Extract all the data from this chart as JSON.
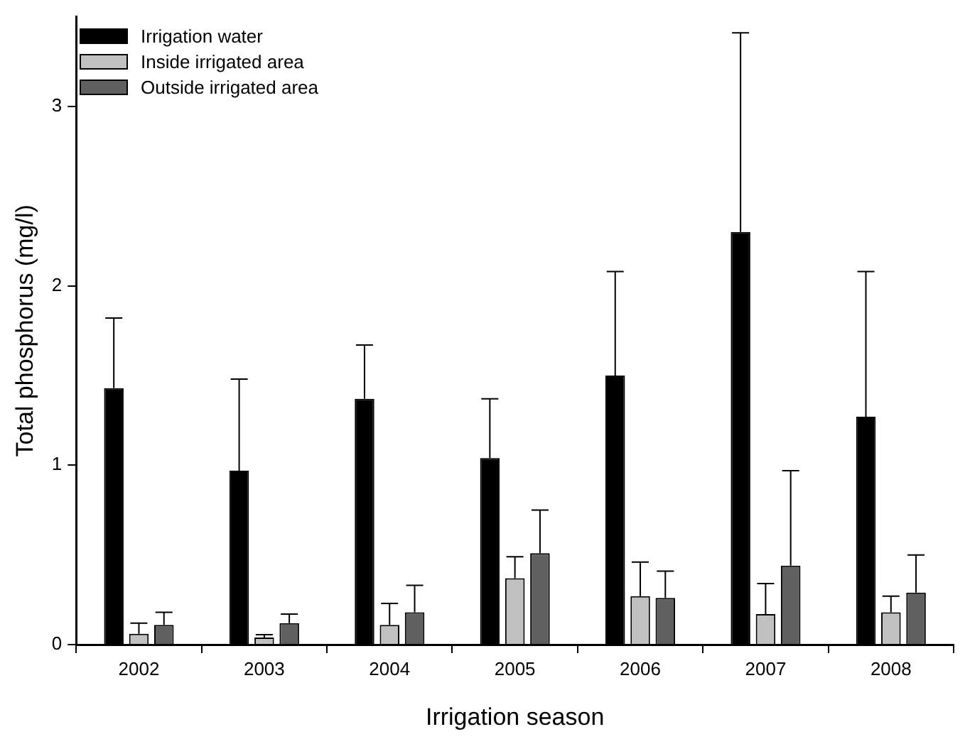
{
  "chart_data": {
    "type": "bar",
    "xlabel": "Irrigation season",
    "ylabel": "Total phosphorus (mg/l)",
    "categories": [
      "2002",
      "2003",
      "2004",
      "2005",
      "2006",
      "2007",
      "2008"
    ],
    "series": [
      {
        "name": "Irrigation water",
        "color": "#000000",
        "values": [
          1.43,
          0.97,
          1.37,
          1.04,
          1.5,
          2.3,
          1.27
        ],
        "errors": [
          [
            1.43,
            1.82
          ],
          [
            0.97,
            1.48
          ],
          [
            1.37,
            1.67
          ],
          [
            1.04,
            1.37
          ],
          [
            1.5,
            2.08
          ],
          [
            2.3,
            3.41
          ],
          [
            1.27,
            2.08
          ]
        ]
      },
      {
        "name": "Inside irrigated area",
        "color": "#c0c0c0",
        "values": [
          0.06,
          0.04,
          0.11,
          0.37,
          0.27,
          0.17,
          0.18
        ],
        "errors": [
          [
            0.06,
            0.12
          ],
          [
            0.04,
            0.055
          ],
          [
            0.11,
            0.23
          ],
          [
            0.37,
            0.49
          ],
          [
            0.27,
            0.46
          ],
          [
            0.17,
            0.34
          ],
          [
            0.18,
            0.27
          ]
        ]
      },
      {
        "name": "Outside irrigated area",
        "color": "#606060",
        "values": [
          0.11,
          0.12,
          0.18,
          0.51,
          0.26,
          0.44,
          0.29
        ],
        "errors": [
          [
            0.11,
            0.18
          ],
          [
            0.12,
            0.17
          ],
          [
            0.18,
            0.33
          ],
          [
            0.51,
            0.75
          ],
          [
            0.26,
            0.41
          ],
          [
            0.44,
            0.97
          ],
          [
            0.29,
            0.5
          ]
        ]
      }
    ],
    "ylim": [
      0,
      3.5
    ],
    "yticks": [
      0,
      1,
      2,
      3
    ],
    "grid": false,
    "legend": "top left"
  }
}
